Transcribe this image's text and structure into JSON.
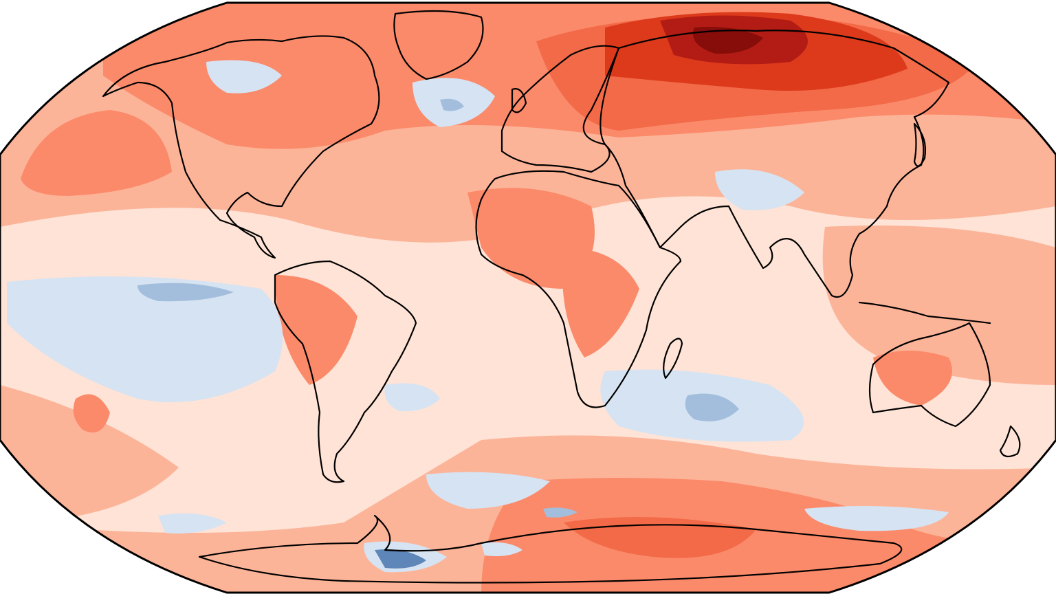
{
  "map": {
    "projection": "robinson",
    "type": "temperature-anomaly-map",
    "background": "#ffffff",
    "frame_color": "#000000",
    "palette": {
      "warm_1": "#fee3d6",
      "warm_2": "#fcb499",
      "warm_3": "#fb8a6a",
      "warm_4": "#f26a47",
      "warm_5": "#dd3a1c",
      "warm_6": "#b31c14",
      "warm_7": "#860d0a",
      "cool_1": "#d6e3f2",
      "cool_2": "#a3bedc",
      "cool_3": "#5f86b8"
    },
    "continents": [
      "north-america",
      "greenland",
      "south-america",
      "europe",
      "africa",
      "asia",
      "australia",
      "antarctica",
      "madagascar"
    ]
  }
}
